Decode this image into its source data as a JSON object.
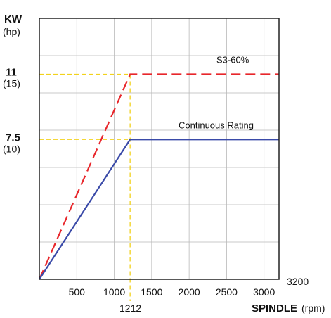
{
  "chart_data": {
    "type": "line",
    "ylabel_main": "KW",
    "ylabel_unit": "(hp)",
    "xlabel_main": "SPINDLE",
    "xlabel_unit": "(rpm)",
    "xlim": [
      0,
      3200
    ],
    "ylim": [
      0,
      14
    ],
    "x_ticks": [
      "500",
      "1000",
      "1500",
      "2000",
      "2500",
      "3000"
    ],
    "x_tick_values": [
      500,
      1000,
      1500,
      2000,
      2500,
      3000
    ],
    "x_max_label": "3200",
    "x_marker_label": "1212",
    "x_marker_value": 1212,
    "y_ticks": [
      {
        "value": 11,
        "label": "11",
        "sub": "(15)"
      },
      {
        "value": 7.5,
        "label": "7.5",
        "sub": "(10)"
      }
    ],
    "grid": true,
    "series": [
      {
        "name": "S3-60%",
        "color": "#e8262b",
        "style": "dashed",
        "points": [
          [
            0,
            0
          ],
          [
            1212,
            11
          ],
          [
            3200,
            11
          ]
        ]
      },
      {
        "name": "Continuous Rating",
        "color": "#3a4aa8",
        "style": "solid",
        "points": [
          [
            0,
            0
          ],
          [
            1212,
            7.5
          ],
          [
            3200,
            7.5
          ]
        ]
      }
    ],
    "guide_color": "#f2d21c"
  }
}
